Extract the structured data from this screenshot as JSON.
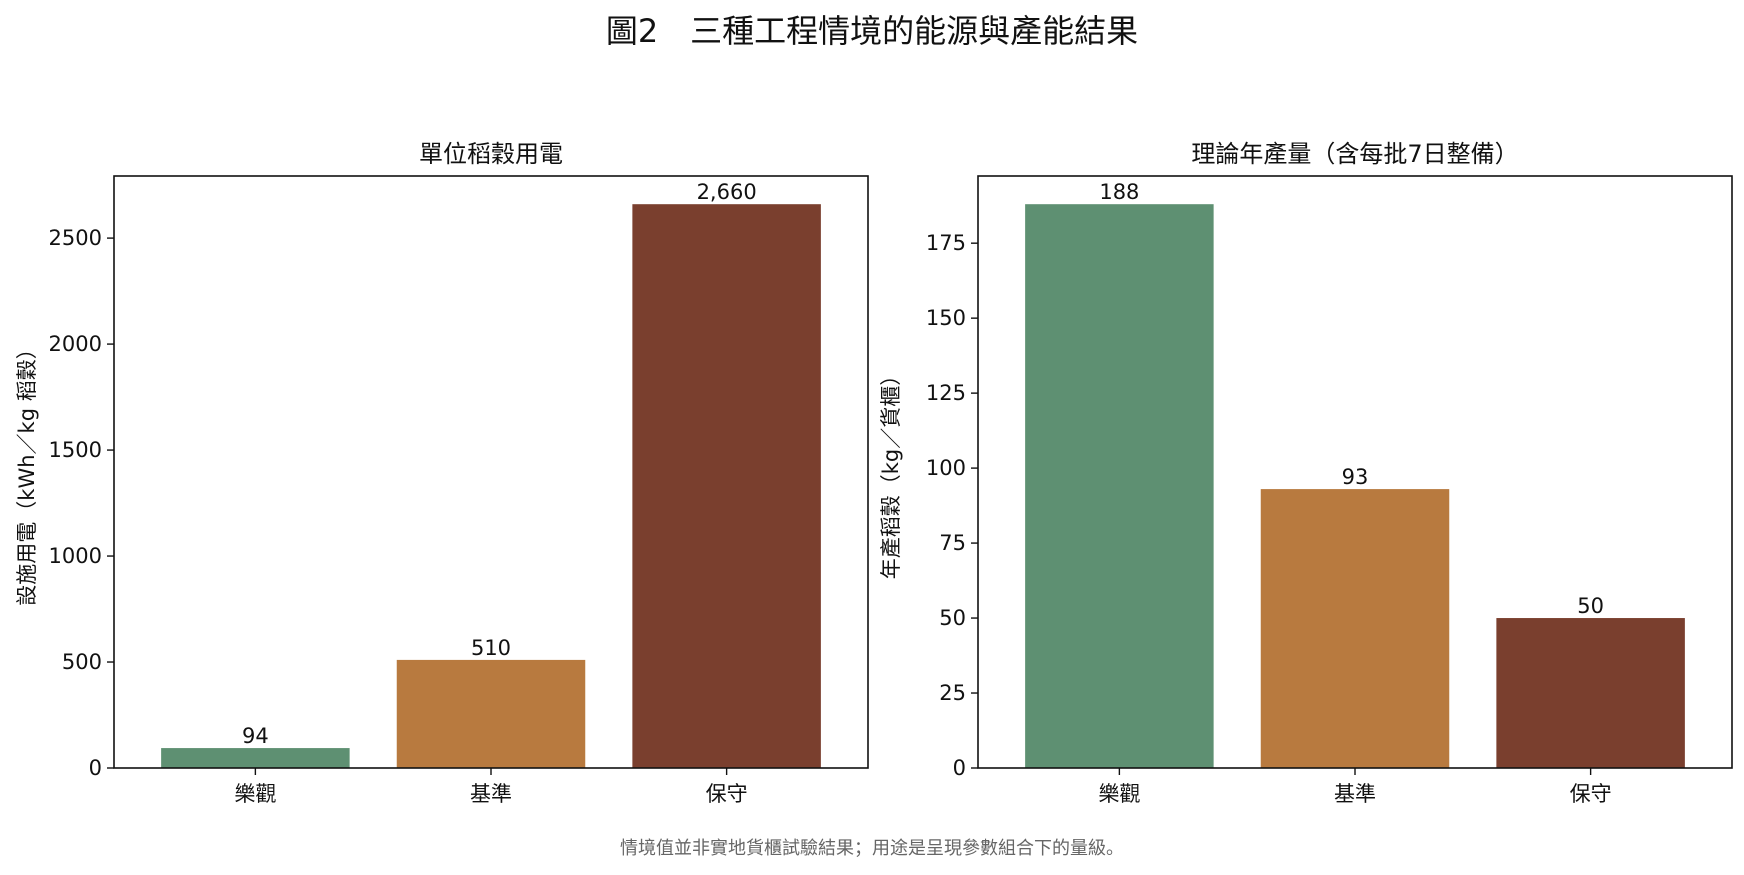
{
  "figure_title": "圖2　三種工程情境的能源與產能結果",
  "footnote": "情境值並非實地貨櫃試驗結果；用途是呈現參數組合下的量級。",
  "colors": {
    "optimistic": "#5e9072",
    "baseline": "#b87a3f",
    "conservative": "#7a3f2e"
  },
  "chart_data": [
    {
      "type": "bar",
      "title": "單位稻穀用電",
      "ylabel": "設施用電（kWh／kg 稻穀）",
      "xlabel": "",
      "categories": [
        "樂觀",
        "基準",
        "保守"
      ],
      "values": [
        94,
        510,
        2660
      ],
      "value_labels": [
        "94",
        "510",
        "2,660"
      ],
      "ylim": [
        0,
        2793
      ],
      "yticks": [
        0,
        500,
        1000,
        1500,
        2000,
        2500
      ],
      "grid": false
    },
    {
      "type": "bar",
      "title": "理論年產量（含每批7日整備）",
      "ylabel": "年產稻穀（kg／貨櫃）",
      "xlabel": "",
      "categories": [
        "樂觀",
        "基準",
        "保守"
      ],
      "values": [
        188,
        93,
        50
      ],
      "value_labels": [
        "188",
        "93",
        "50"
      ],
      "ylim": [
        0,
        197.4
      ],
      "yticks": [
        0,
        25,
        50,
        75,
        100,
        125,
        150,
        175
      ],
      "grid": false
    }
  ]
}
